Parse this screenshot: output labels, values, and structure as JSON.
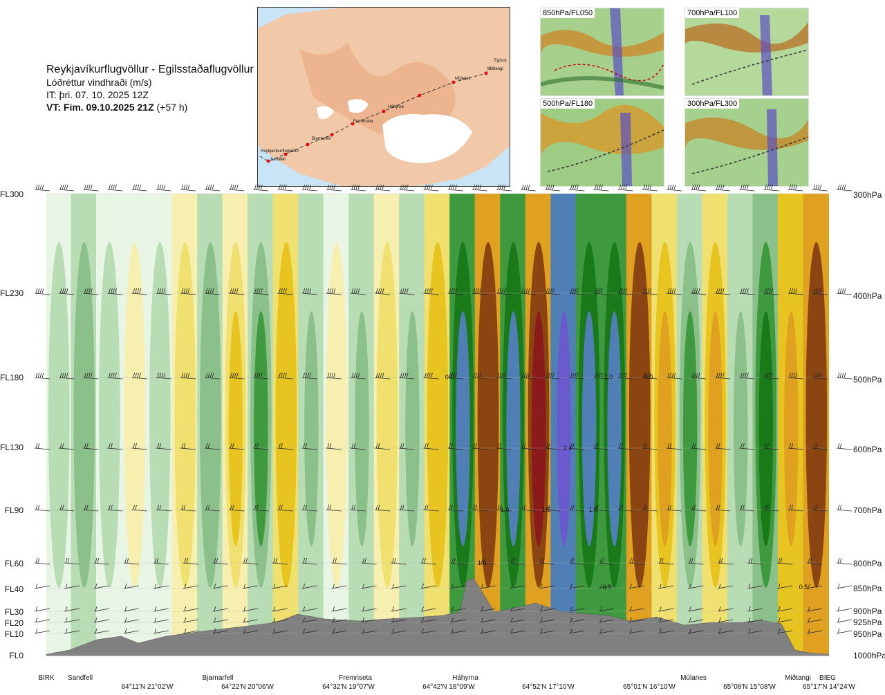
{
  "title": {
    "route": "Reykjavíkurflugvöllur - Egilsstaðaflugvöllur",
    "quantity": "Lóðréttur vindhraði (m/s)",
    "it": "IT: þri. 07. 10. 2025 12Z",
    "vt_bold": "VT: Fim. 09.10.2025 21Z",
    "vt_rest": " (+57 h)"
  },
  "map": {
    "places": [
      "Reykjavíkurflugvöllur",
      "Sandfell",
      "Bjarnarfell",
      "Fremriseta",
      "Háhyrna",
      "Múlanes",
      "Miðtangi",
      "Egilsst"
    ]
  },
  "thumbnails": [
    {
      "label": "850hPa/FL050"
    },
    {
      "label": "700hPa/FL100"
    },
    {
      "label": "500hPa/FL180"
    },
    {
      "label": "300hPa/FL300"
    }
  ],
  "colors": {
    "terrain": "#808080",
    "strong_up": "#6a5acd",
    "up_blue": "#4f7fb5",
    "strong_down": "#8b1a1a",
    "down_brown": "#8b4513",
    "route_line": "#333333",
    "waypoint": "#e01010"
  },
  "chart_data": {
    "type": "heatmap",
    "title": "",
    "xlabel": "",
    "ylabel": "",
    "levels": [
      {
        "fl": "FL300",
        "hpa": "300hPa"
      },
      {
        "fl": "FL230",
        "hpa": "400hPa"
      },
      {
        "fl": "FL180",
        "hpa": "500hPa"
      },
      {
        "fl": "FL130",
        "hpa": "600hPa"
      },
      {
        "fl": "FL90",
        "hpa": "700hPa"
      },
      {
        "fl": "FL60",
        "hpa": "800hPa"
      },
      {
        "fl": "FL40",
        "hpa": "850hPa"
      },
      {
        "fl": "FL30",
        "hpa": "900hPa"
      },
      {
        "fl": "FL20",
        "hpa": "925hPa"
      },
      {
        "fl": "FL10",
        "hpa": "950hPa"
      },
      {
        "fl": "FL0",
        "hpa": "1000hPa"
      }
    ],
    "locations": [
      "BIRK",
      "Sandfell",
      "Bjarnarfell",
      "Fremriseta",
      "Háhyrna",
      "Múlanes",
      "Miðtangi",
      "BIEG"
    ],
    "coordinates": [
      "64°11'N 21°02'W",
      "64°22'N 20°06'W",
      "64°32'N 19°07'W",
      "64°42'N 18°09'W",
      "64°52'N 17°10'W",
      "65°01'N 16°10'W",
      "65°08'N 15°08'W",
      "65°17'N 14°24'W"
    ],
    "contour_labels": [
      "0.0",
      "1.0",
      "0.0",
      "2.4",
      "1.0",
      "1.5",
      "1.0",
      "1.0",
      "0.5",
      "0.5"
    ],
    "vertical_bands_ms": [
      0.1,
      0.3,
      0.1,
      -0.1,
      0.1,
      -0.2,
      0.3,
      -0.3,
      0.4,
      -0.4,
      0.2,
      -0.1,
      0.2,
      -0.2,
      0.2,
      -0.4,
      1.0,
      -1.0,
      1.0,
      -1.5,
      2.4,
      1.0,
      1.0,
      -1.0,
      -0.5,
      0.4,
      -0.5,
      0.2,
      0.7,
      -0.6,
      -1.0
    ]
  }
}
